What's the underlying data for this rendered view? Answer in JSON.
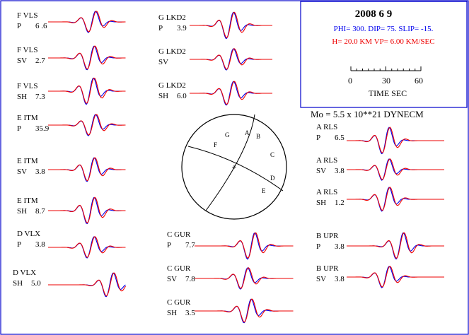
{
  "header": {
    "date": "2008  6  9",
    "mechanism": "PHI= 300. DIP= 75. SLIP= -15.",
    "depth_velocity": "H= 20.0 KM  VP= 6.00 KM/SEC",
    "scale_ticks": [
      "0",
      "30",
      "60"
    ],
    "time_label": "TIME   SEC",
    "moment": "Mo =  5.5 x 10**21 DYNECM"
  },
  "colors": {
    "observed": "#0000ee",
    "synthetic": "#ee0000",
    "border": "#0000cc",
    "text": "#000000"
  },
  "focal_sphere": {
    "stations": [
      "G",
      "A",
      "B",
      "F",
      "C",
      "D",
      "E"
    ]
  },
  "traces": [
    {
      "station": "F VLS",
      "component": "P",
      "amp": "6 .6"
    },
    {
      "station": "F VLS",
      "component": "SV",
      "amp": "2.7"
    },
    {
      "station": "F VLS",
      "component": "SH",
      "amp": "7.3"
    },
    {
      "station": "E ITM",
      "component": "P",
      "amp": "35.9"
    },
    {
      "station": "E ITM",
      "component": "SV",
      "amp": "3.8"
    },
    {
      "station": "E ITM",
      "component": "SH",
      "amp": "8.7"
    },
    {
      "station": "D VLX",
      "component": "P",
      "amp": "3.8"
    },
    {
      "station": "D VLX",
      "component": "SH",
      "amp": "5.0"
    },
    {
      "station": "G LKD2",
      "component": "P",
      "amp": "3.9"
    },
    {
      "station": "G LKD2",
      "component": "SV",
      "amp": ""
    },
    {
      "station": "G LKD2",
      "component": "SH",
      "amp": "6.0"
    },
    {
      "station": "C GUR",
      "component": "P",
      "amp": "7.7"
    },
    {
      "station": "C GUR",
      "component": "SV",
      "amp": "7.8"
    },
    {
      "station": "C GUR",
      "component": "SH",
      "amp": "3.5"
    },
    {
      "station": "A RLS",
      "component": "P",
      "amp": "6.5"
    },
    {
      "station": "A RLS",
      "component": "SV",
      "amp": "3.8"
    },
    {
      "station": "A RLS",
      "component": "SH",
      "amp": "1.2"
    },
    {
      "station": "B UPR",
      "component": "P",
      "amp": "3.8"
    },
    {
      "station": "B UPR",
      "component": "SV",
      "amp": "3.8"
    }
  ]
}
